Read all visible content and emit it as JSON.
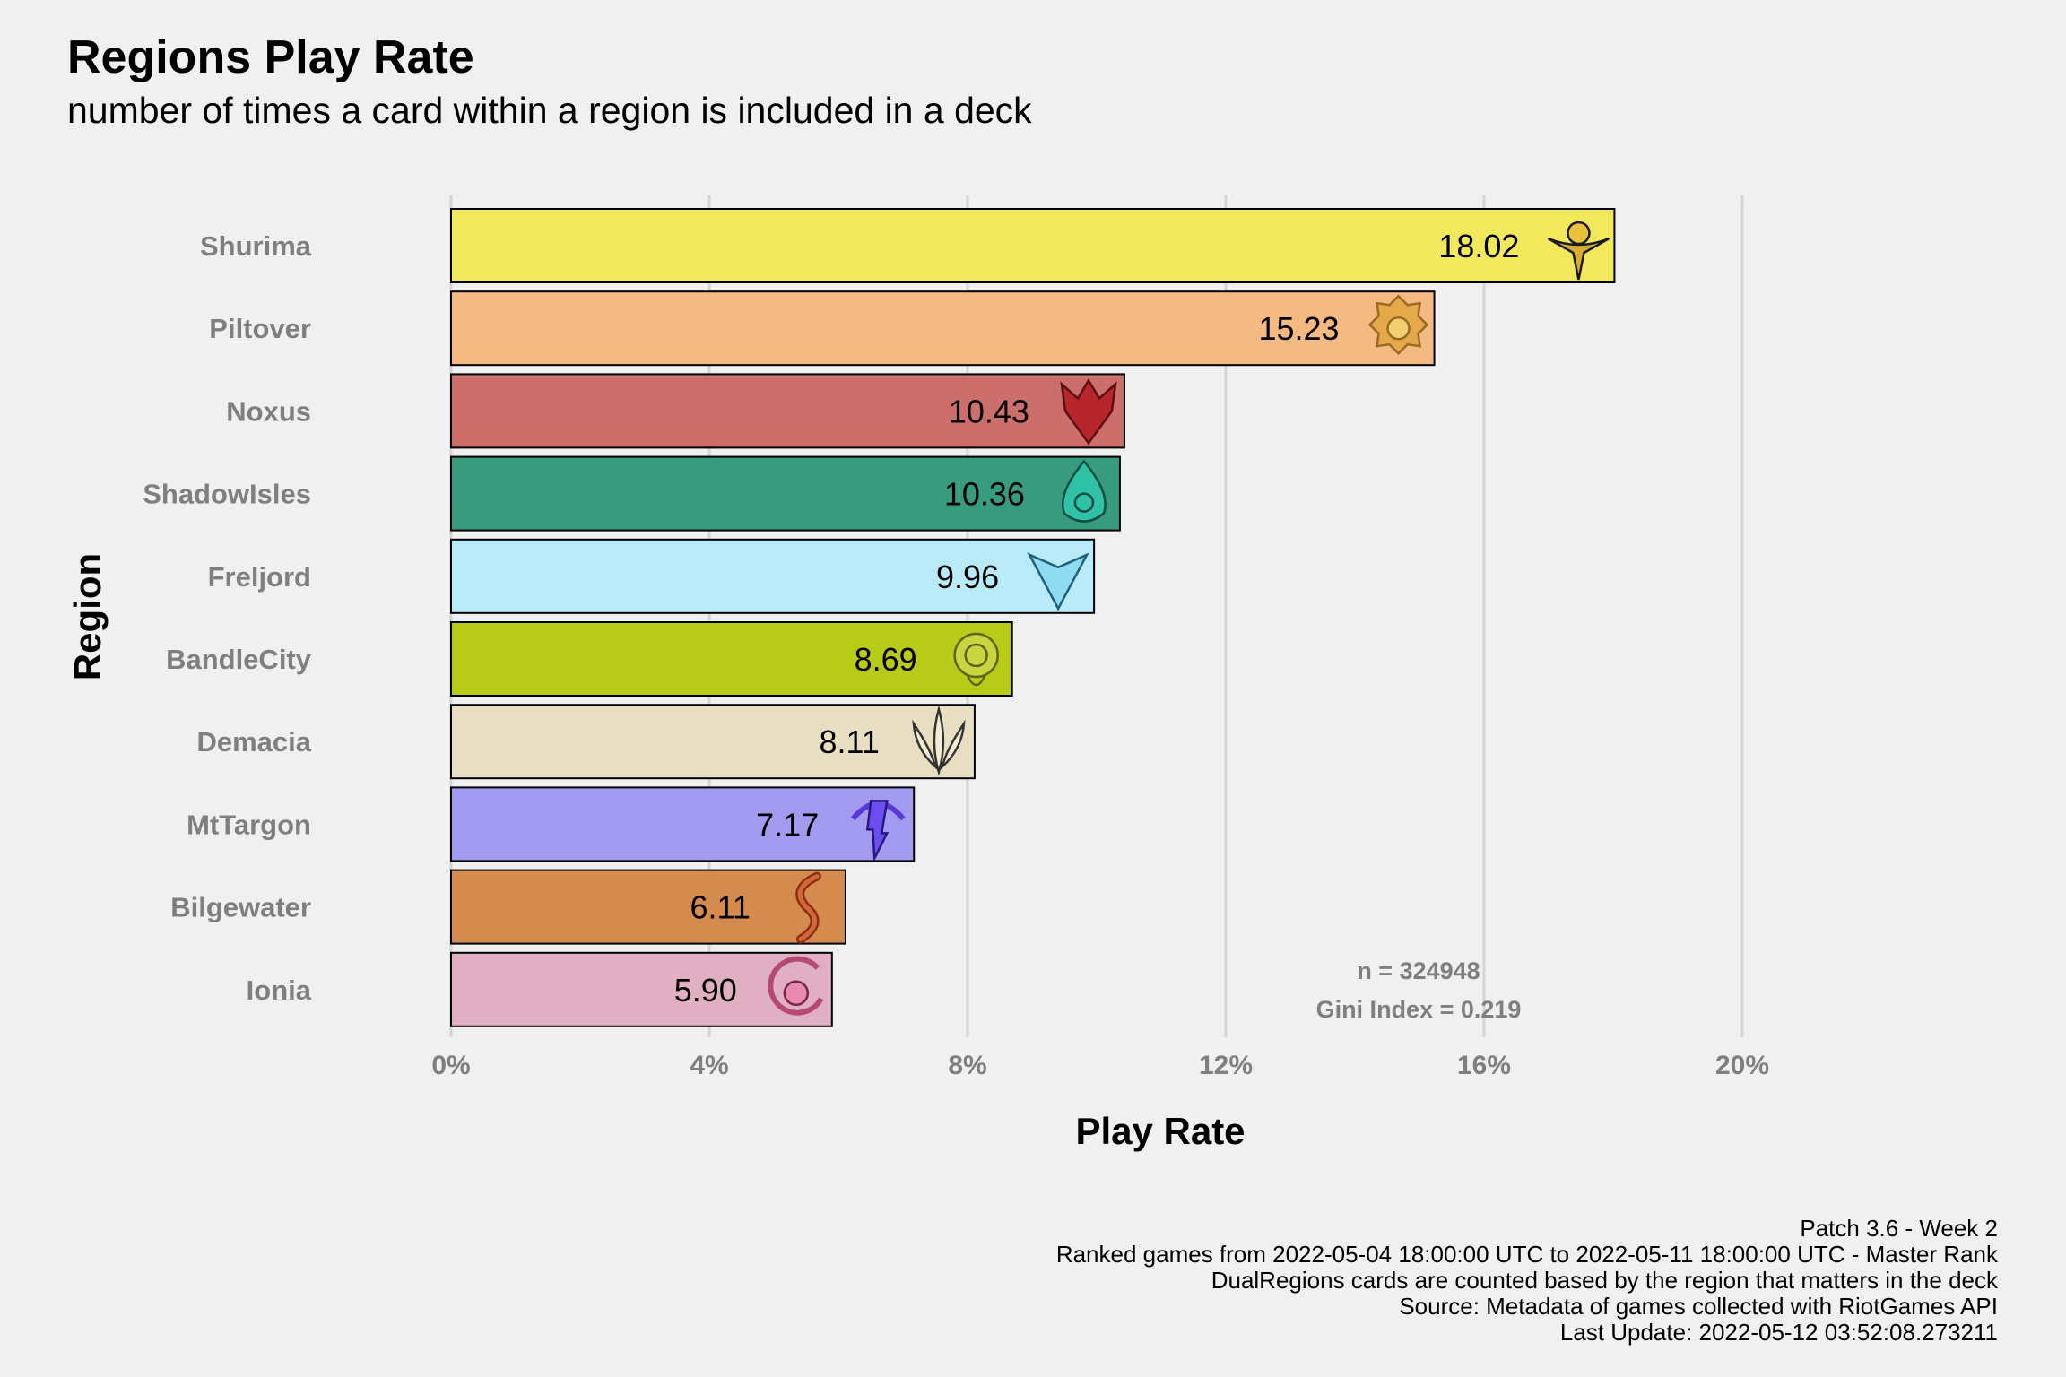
{
  "header": {
    "title": "Regions Play Rate",
    "subtitle": "number of times a card within a region is included in a deck"
  },
  "chart_data": {
    "type": "bar",
    "orientation": "horizontal",
    "xlabel": "Play Rate",
    "ylabel": "Region",
    "xlim": [
      0,
      20
    ],
    "xticks": [
      "0%",
      "4%",
      "8%",
      "12%",
      "16%",
      "20%"
    ],
    "xtick_values": [
      0,
      4,
      8,
      12,
      16,
      20
    ],
    "grid": true,
    "categories": [
      "Shurima",
      "Piltover",
      "Noxus",
      "ShadowIsles",
      "Freljord",
      "BandleCity",
      "Demacia",
      "MtTargon",
      "Bilgewater",
      "Ionia"
    ],
    "values": [
      18.02,
      15.23,
      10.43,
      10.36,
      9.96,
      8.69,
      8.11,
      7.17,
      6.11,
      5.9
    ],
    "value_labels": [
      "18.02",
      "15.23",
      "10.43",
      "10.36",
      "9.96",
      "8.69",
      "8.11",
      "7.17",
      "6.11",
      "5.90"
    ],
    "colors": [
      "#f2e85c",
      "#f5b982",
      "#cc6e6b",
      "#379b7e",
      "#b9eaf7",
      "#b9cb19",
      "#e8dfc2",
      "#a29bef",
      "#d58b4e",
      "#e0b0c2"
    ],
    "icons": [
      "shurima-emblem-icon",
      "piltover-emblem-icon",
      "noxus-emblem-icon",
      "shadowisles-emblem-icon",
      "freljord-emblem-icon",
      "bandlecity-emblem-icon",
      "demacia-emblem-icon",
      "mttargon-emblem-icon",
      "bilgewater-emblem-icon",
      "ionia-emblem-icon"
    ],
    "annotations": [
      "n = 324948",
      "Gini Index = 0.219"
    ]
  },
  "caption": [
    "Patch 3.6 - Week 2",
    "Ranked games from 2022-05-04 18:00:00 UTC to 2022-05-11 18:00:00 UTC - Master Rank",
    "DualRegions cards are counted based by the region that matters in the deck",
    "Source: Metadata of games collected with RiotGames API",
    "Last Update: 2022-05-12 03:52:08.273211"
  ]
}
